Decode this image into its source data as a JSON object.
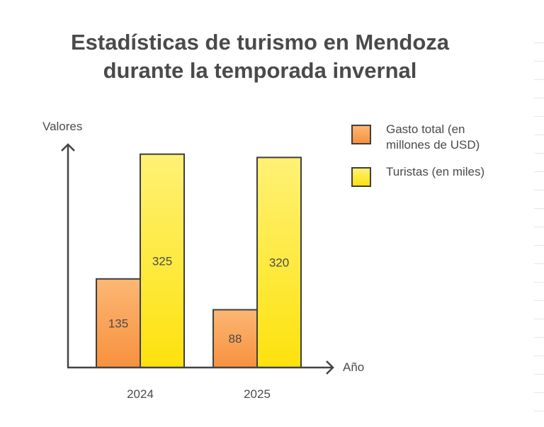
{
  "chart_data": {
    "type": "bar",
    "title_lines": [
      "Estadísticas de turismo en Mendoza",
      "durante la temporada invernal"
    ],
    "ylabel": "Valores",
    "xlabel": "Año",
    "categories": [
      "2024",
      "2025"
    ],
    "series": [
      {
        "name": "Gasto total (en millones de USD)",
        "name_lines": [
          "Gasto total (en",
          "millones de USD)"
        ],
        "values": [
          135,
          88
        ],
        "color_top": "#fcb774",
        "color_bottom": "#f7913e"
      },
      {
        "name": "Turistas (en miles)",
        "name_lines": [
          "Turistas (en miles)"
        ],
        "values": [
          325,
          320
        ],
        "color_top": "#fff176",
        "color_bottom": "#fde20d"
      }
    ],
    "ylim": [
      0,
      370
    ],
    "grid": false,
    "legend_position": "right"
  }
}
